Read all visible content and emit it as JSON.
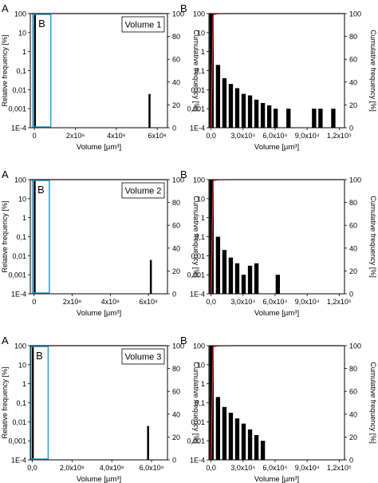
{
  "colors": {
    "bar": "#000000",
    "cumulative_line": "#e03030",
    "highlight_box": "#29a6d6",
    "frame": "#000000"
  },
  "chart_data": [
    {
      "type": "bar",
      "panel_label": "A",
      "inset_label": "B",
      "annotation": "Volume 1",
      "xlabel": "Volume [µm³]",
      "ylabel": "Relative frequency [%]",
      "y2label": "Cumulative frequency [%]",
      "xlim": [
        -20000000,
        650000000
      ],
      "xticks": [
        {
          "v": 0,
          "t": "0"
        },
        {
          "v": 200000000,
          "t": "2x10⁸"
        },
        {
          "v": 400000000,
          "t": "4x10⁸"
        },
        {
          "v": 600000000,
          "t": "6x10⁸"
        }
      ],
      "yscale": "log",
      "yticks": [
        {
          "v": 100,
          "t": "100"
        },
        {
          "v": 10,
          "t": "10"
        },
        {
          "v": 1,
          "t": "1"
        },
        {
          "v": 0.1,
          "t": "0,1"
        },
        {
          "v": 0.01,
          "t": "0,01"
        },
        {
          "v": 0.001,
          "t": "0,001"
        },
        {
          "v": 0.0001,
          "t": "1E-4"
        }
      ],
      "y2ticks": [
        0,
        20,
        40,
        60,
        80,
        100
      ],
      "bar_width": 5000000,
      "bars": [
        {
          "x": 0,
          "y": 99.9
        },
        {
          "x": 560000000,
          "y": 0.006
        }
      ],
      "cumulative": [
        {
          "x": -20000000,
          "y": 100
        },
        {
          "x": 640000000,
          "y": 100
        }
      ],
      "zoom_box": [
        0,
        80000000
      ]
    },
    {
      "type": "bar",
      "panel_label": "B",
      "ylabel": "",
      "y2label": "Cumulative frequency [%]",
      "xlabel": "Volume [µm³]",
      "xlim": [
        -2000,
        125000
      ],
      "xticks": [
        {
          "v": 0,
          "t": "0,0"
        },
        {
          "v": 30000,
          "t": "3,0x10⁴"
        },
        {
          "v": 60000,
          "t": "6,0x10⁴"
        },
        {
          "v": 90000,
          "t": "9,0x10⁴"
        },
        {
          "v": 120000,
          "t": "1,2x10⁵"
        }
      ],
      "yscale": "log",
      "yticks": [
        {
          "v": 100,
          "t": "100"
        },
        {
          "v": 10,
          "t": "10"
        },
        {
          "v": 1,
          "t": "1"
        },
        {
          "v": 0.1,
          "t": "0,1"
        },
        {
          "v": 0.01,
          "t": "0,01"
        },
        {
          "v": 0.001,
          "t": "0,001"
        },
        {
          "v": 0.0001,
          "t": "1E-4"
        }
      ],
      "y2ticks": [
        0,
        20,
        40,
        60,
        80,
        100
      ],
      "bar_width": 4000,
      "bars": [
        {
          "x": 500,
          "y": 99
        },
        {
          "x": 6500,
          "y": 0.2
        },
        {
          "x": 12500,
          "y": 0.04
        },
        {
          "x": 18500,
          "y": 0.02
        },
        {
          "x": 24500,
          "y": 0.012
        },
        {
          "x": 30500,
          "y": 0.006
        },
        {
          "x": 36500,
          "y": 0.005
        },
        {
          "x": 42500,
          "y": 0.003
        },
        {
          "x": 48500,
          "y": 0.002
        },
        {
          "x": 54500,
          "y": 0.0015
        },
        {
          "x": 60500,
          "y": 0.001
        },
        {
          "x": 72500,
          "y": 0.001
        },
        {
          "x": 96500,
          "y": 0.001
        },
        {
          "x": 102500,
          "y": 0.001
        },
        {
          "x": 114500,
          "y": 0.001
        }
      ],
      "cumulative": [
        {
          "x": 0,
          "y": 0
        },
        {
          "x": 2000,
          "y": 99
        },
        {
          "x": 6000,
          "y": 99.8
        },
        {
          "x": 20000,
          "y": 100
        },
        {
          "x": 124000,
          "y": 100
        }
      ]
    },
    {
      "type": "bar",
      "panel_label": "A",
      "inset_label": "B",
      "annotation": "Volume 2",
      "xlabel": "Volume [µm³]",
      "ylabel": "Relative frequency [%]",
      "y2label": "Cumulative frequency [%]",
      "xlim": [
        -20000000,
        700000000
      ],
      "xticks": [
        {
          "v": 0,
          "t": "0"
        },
        {
          "v": 200000000,
          "t": "2x10⁸"
        },
        {
          "v": 400000000,
          "t": "4x10⁸"
        },
        {
          "v": 600000000,
          "t": "6x10⁸"
        }
      ],
      "yscale": "log",
      "yticks": [
        {
          "v": 100,
          "t": "100"
        },
        {
          "v": 10,
          "t": "10"
        },
        {
          "v": 1,
          "t": "1"
        },
        {
          "v": 0.1,
          "t": "0,1"
        },
        {
          "v": 0.01,
          "t": "0,01"
        },
        {
          "v": 0.001,
          "t": "0,001"
        },
        {
          "v": 0.0001,
          "t": "1E-4"
        }
      ],
      "y2ticks": [
        0,
        20,
        40,
        60,
        80,
        100
      ],
      "bar_width": 5000000,
      "bars": [
        {
          "x": 0,
          "y": 99.9
        },
        {
          "x": 610000000,
          "y": 0.006
        }
      ],
      "cumulative": [
        {
          "x": -20000000,
          "y": 100
        },
        {
          "x": 690000000,
          "y": 100
        }
      ],
      "zoom_box": [
        0,
        80000000
      ]
    },
    {
      "type": "bar",
      "panel_label": "B",
      "ylabel": "",
      "y2label": "Cumulative frequency [%]",
      "xlabel": "Volume [µm³]",
      "xlim": [
        -2000,
        125000
      ],
      "xticks": [
        {
          "v": 0,
          "t": "0,0"
        },
        {
          "v": 30000,
          "t": "3,0x10⁴"
        },
        {
          "v": 60000,
          "t": "6,0x10⁴"
        },
        {
          "v": 90000,
          "t": "9,0x10⁴"
        },
        {
          "v": 120000,
          "t": "1,2x10⁵"
        }
      ],
      "yscale": "log",
      "yticks": [
        {
          "v": 100,
          "t": "100"
        },
        {
          "v": 10,
          "t": "10"
        },
        {
          "v": 1,
          "t": "1"
        },
        {
          "v": 0.1,
          "t": "0,1"
        },
        {
          "v": 0.01,
          "t": "0,01"
        },
        {
          "v": 0.001,
          "t": "0,001"
        },
        {
          "v": 0.0001,
          "t": "1E-4"
        }
      ],
      "y2ticks": [
        0,
        20,
        40,
        60,
        80,
        100
      ],
      "bar_width": 4000,
      "bars": [
        {
          "x": 500,
          "y": 99
        },
        {
          "x": 6500,
          "y": 0.1
        },
        {
          "x": 12500,
          "y": 0.02
        },
        {
          "x": 18500,
          "y": 0.008
        },
        {
          "x": 24500,
          "y": 0.004
        },
        {
          "x": 30500,
          "y": 0.001
        },
        {
          "x": 36500,
          "y": 0.003
        },
        {
          "x": 42500,
          "y": 0.004
        },
        {
          "x": 62500,
          "y": 0.001
        }
      ],
      "cumulative": [
        {
          "x": 0,
          "y": 0
        },
        {
          "x": 2000,
          "y": 99
        },
        {
          "x": 6000,
          "y": 99.8
        },
        {
          "x": 20000,
          "y": 100
        },
        {
          "x": 124000,
          "y": 100
        }
      ]
    },
    {
      "type": "bar",
      "panel_label": "A",
      "inset_label": "B",
      "annotation": "Volume 3",
      "xlabel": "Volume [µm³]",
      "ylabel": "Relative frequency [%]",
      "y2label": "Cumulative frequency [%]",
      "xlim": [
        -10000000,
        680000000
      ],
      "xticks": [
        {
          "v": 0,
          "t": "0,0"
        },
        {
          "v": 200000000,
          "t": "2,0x10⁸"
        },
        {
          "v": 400000000,
          "t": "4,0x10⁸"
        },
        {
          "v": 600000000,
          "t": "6,0x10⁸"
        }
      ],
      "yscale": "log",
      "yticks": [
        {
          "v": 100,
          "t": "100"
        },
        {
          "v": 10,
          "t": "10"
        },
        {
          "v": 1,
          "t": "1"
        },
        {
          "v": 0.1,
          "t": "0,1"
        },
        {
          "v": 0.01,
          "t": "0,01"
        },
        {
          "v": 0.001,
          "t": "0,001"
        },
        {
          "v": 0.0001,
          "t": "1E-4"
        }
      ],
      "y2ticks": [
        0,
        20,
        40,
        60,
        80,
        100
      ],
      "bar_width": 5000000,
      "bars": [
        {
          "x": 0,
          "y": 99.9
        },
        {
          "x": 580000000,
          "y": 0.006
        }
      ],
      "cumulative": [
        {
          "x": -10000000,
          "y": 100
        },
        {
          "x": 670000000,
          "y": 100
        }
      ],
      "zoom_box": [
        0,
        80000000
      ]
    },
    {
      "type": "bar",
      "panel_label": "B",
      "ylabel": "",
      "y2label": "Cumulative frequency [%]",
      "xlabel": "Volume [µm³]",
      "xlim": [
        -2000,
        125000
      ],
      "xticks": [
        {
          "v": 0,
          "t": "0,0"
        },
        {
          "v": 30000,
          "t": "3,0x10⁴"
        },
        {
          "v": 60000,
          "t": "6,0x10⁴"
        },
        {
          "v": 90000,
          "t": "9,0x10⁴"
        },
        {
          "v": 120000,
          "t": "1,2x10⁵"
        }
      ],
      "yscale": "log",
      "yticks": [
        {
          "v": 100,
          "t": "100"
        },
        {
          "v": 10,
          "t": "10"
        },
        {
          "v": 1,
          "t": "1"
        },
        {
          "v": 0.1,
          "t": "0,1"
        },
        {
          "v": 0.01,
          "t": "0,01"
        },
        {
          "v": 0.001,
          "t": "0,001"
        },
        {
          "v": 0.0001,
          "t": "1E-4"
        }
      ],
      "y2ticks": [
        0,
        20,
        40,
        60,
        80,
        100
      ],
      "bar_width": 4000,
      "bars": [
        {
          "x": 500,
          "y": 99
        },
        {
          "x": 6500,
          "y": 0.2
        },
        {
          "x": 12500,
          "y": 0.06
        },
        {
          "x": 18500,
          "y": 0.03
        },
        {
          "x": 24500,
          "y": 0.015
        },
        {
          "x": 30500,
          "y": 0.008
        },
        {
          "x": 36500,
          "y": 0.004
        },
        {
          "x": 42500,
          "y": 0.002
        },
        {
          "x": 48500,
          "y": 0.001
        }
      ],
      "cumulative": [
        {
          "x": 0,
          "y": 0
        },
        {
          "x": 2000,
          "y": 99
        },
        {
          "x": 6000,
          "y": 99.8
        },
        {
          "x": 20000,
          "y": 100
        },
        {
          "x": 124000,
          "y": 100
        }
      ]
    }
  ]
}
